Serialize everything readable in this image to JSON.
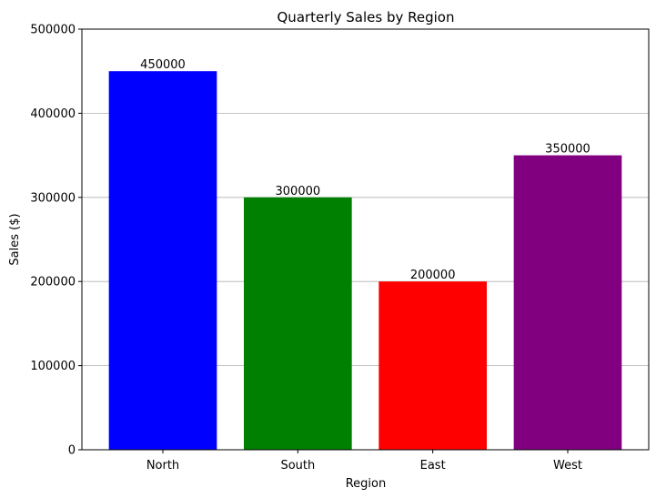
{
  "chart_data": {
    "type": "bar",
    "title": "Quarterly Sales by Region",
    "xlabel": "Region",
    "ylabel": "Sales ($)",
    "categories": [
      "North",
      "South",
      "East",
      "West"
    ],
    "values": [
      450000,
      300000,
      200000,
      350000
    ],
    "data_labels": [
      "450000",
      "300000",
      "200000",
      "350000"
    ],
    "colors": [
      "#0000ff",
      "#008000",
      "#ff0000",
      "#800080"
    ],
    "ylim": [
      0,
      500000
    ],
    "yticks": [
      0,
      100000,
      200000,
      300000,
      400000,
      500000
    ],
    "ytick_labels": [
      "0",
      "100000",
      "200000",
      "300000",
      "400000",
      "500000"
    ],
    "grid": "y-axis",
    "grid_color": "#b0b0b0",
    "axis_color": "#000000"
  }
}
